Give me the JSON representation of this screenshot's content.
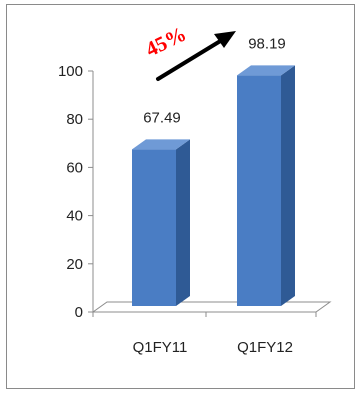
{
  "chart_data": {
    "type": "bar",
    "style": "3d-column",
    "categories": [
      "Q1FY11",
      "Q1FY12"
    ],
    "series": [
      {
        "values": [
          67.49,
          98.19
        ]
      }
    ],
    "data_labels": [
      "67.49",
      "98.19"
    ],
    "ylim": [
      0,
      100
    ],
    "yticks": [
      "0",
      "20",
      "40",
      "60",
      "80",
      "100"
    ],
    "grid": false,
    "legend": "none",
    "annotation": {
      "text": "45%",
      "arrow": "up-right",
      "color": "#ff0000"
    },
    "colors": {
      "bar_front": "#4a7dc4",
      "bar_side": "#2f5a95",
      "bar_top": "#6f9ad6",
      "axis": "#8c8c8c",
      "arrow": "#000000"
    }
  }
}
